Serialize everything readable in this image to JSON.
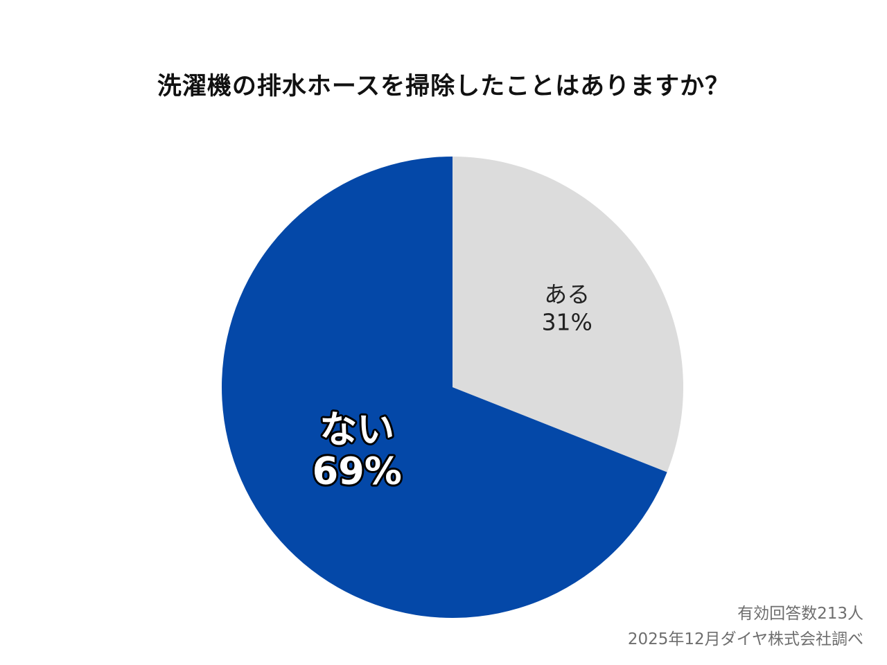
{
  "chart_data": {
    "type": "pie",
    "title": "洗濯機の排水ホースを掃除したことはありますか？",
    "slices": [
      {
        "label": "ある",
        "value": 31,
        "value_label": "31%",
        "color": "#dcdcdc",
        "text_color": "#222222"
      },
      {
        "label": "ない",
        "value": 69,
        "value_label": "69%",
        "color": "#0448a8",
        "text_color": "#ffffff",
        "text_outline": "#000000"
      }
    ],
    "start": "top, clockwise",
    "legend": "none",
    "notes": [
      "有効回答数213人",
      "2025年12月ダイヤ株式会社調べ"
    ]
  }
}
